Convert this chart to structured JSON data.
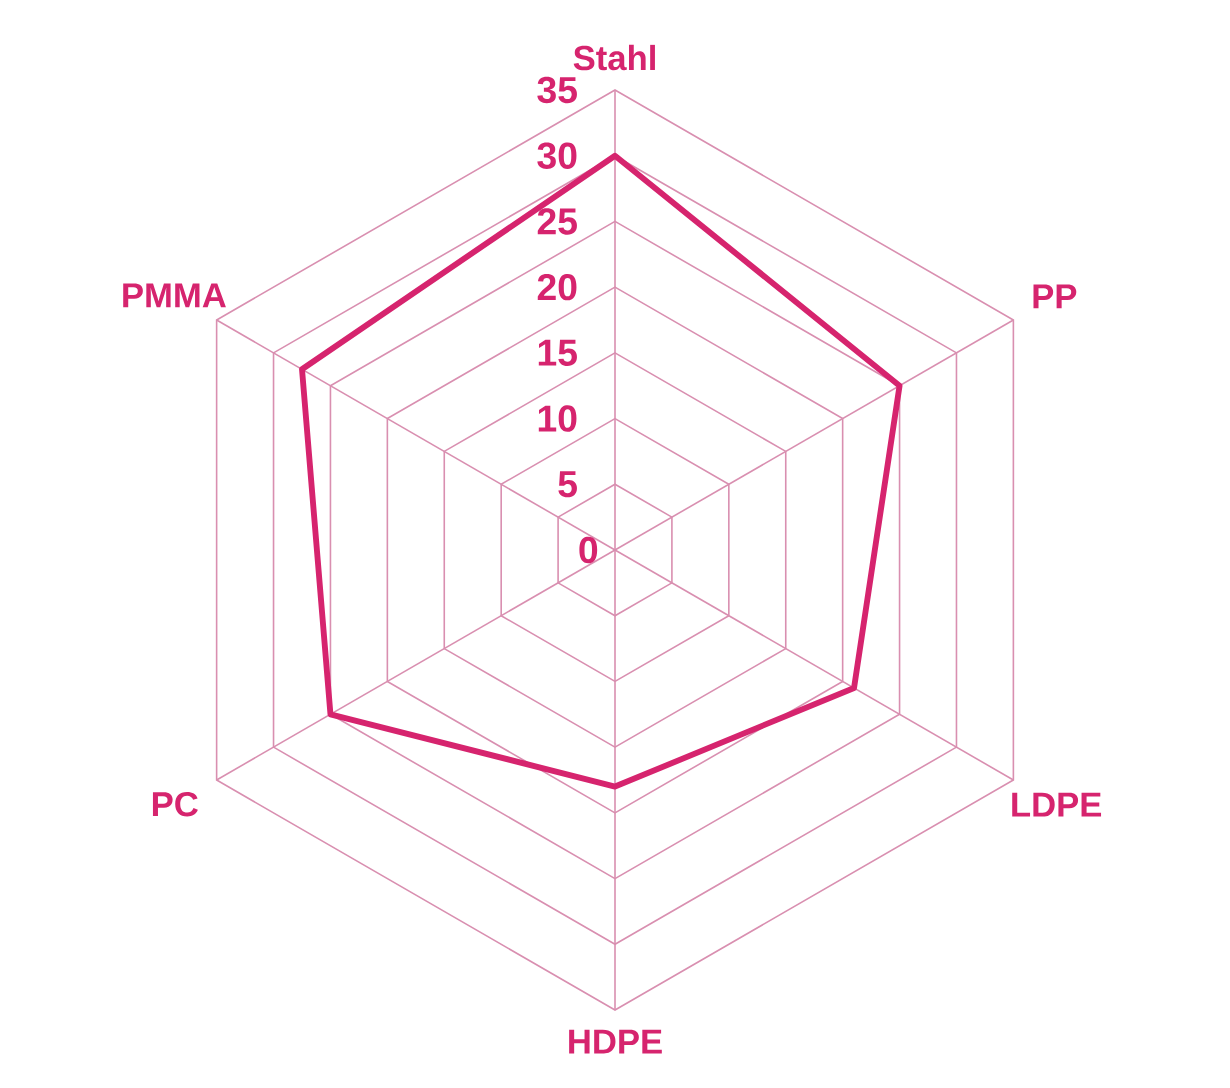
{
  "chart_data": {
    "type": "radar",
    "categories": [
      "Stahl",
      "PP",
      "LDPE",
      "HDPE",
      "PC",
      "PMMA"
    ],
    "series": [
      {
        "color": "#d6246e",
        "values": [
          30,
          25,
          21,
          18,
          25,
          27.5
        ]
      }
    ],
    "ylim": [
      0,
      35
    ],
    "yticks": [
      0,
      5,
      10,
      15,
      20,
      25,
      30,
      35
    ],
    "grid": true
  }
}
